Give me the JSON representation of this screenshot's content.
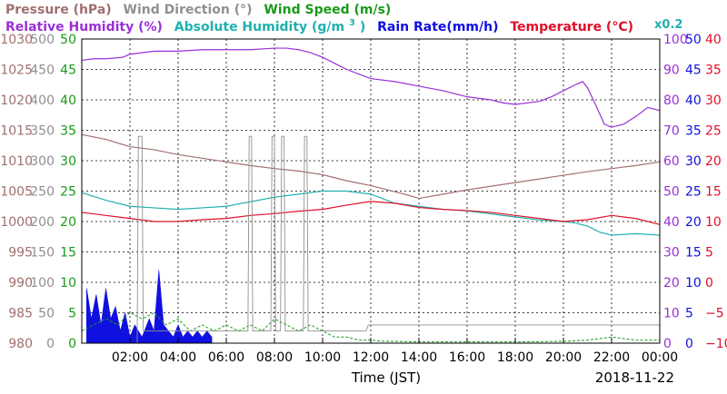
{
  "legend": {
    "pressure": {
      "text": "Pressure (hPa)",
      "color": "#a07070"
    },
    "wind_dir": {
      "text": "Wind Direction (°)",
      "color": "#909090"
    },
    "wind_speed": {
      "text": "Wind Speed (m/s)",
      "color": "#1a9a1a"
    },
    "humidity": {
      "text": "Relative Humidity (%)",
      "color": "#9a30d8"
    },
    "abs_hum_prefix": {
      "text": "Absolute Humidity (g/m",
      "color": "#20b0b0"
    },
    "abs_hum_sup": {
      "text": "3",
      "color": "#20b0b0"
    },
    "abs_hum_suffix": {
      "text": ")",
      "color": "#20b0b0"
    },
    "abs_hum_scale": {
      "text": "x0.2",
      "color": "#20b0b0"
    },
    "rain": {
      "text": "Rain Rate(mm/h)",
      "color": "#1010e0"
    },
    "temperature": {
      "text": "Temperature (°C)",
      "color": "#e0102a"
    }
  },
  "xlabel": "Time (JST)",
  "date": "2018-11-22",
  "chart_data": {
    "type": "line",
    "x_ticks": [
      "02:00",
      "04:00",
      "06:00",
      "08:00",
      "10:00",
      "12:00",
      "14:00",
      "16:00",
      "18:00",
      "20:00",
      "22:00",
      "00:00"
    ],
    "x_range_hours": [
      0,
      24
    ],
    "axes": {
      "pressure": {
        "range": [
          980,
          1030
        ],
        "ticks": [
          980,
          985,
          990,
          995,
          1000,
          1005,
          1010,
          1015,
          1020,
          1025,
          1030
        ],
        "color": "#a07070"
      },
      "wind_direction": {
        "range": [
          0,
          500
        ],
        "ticks": [
          0,
          50,
          100,
          150,
          200,
          250,
          300,
          350,
          400,
          450,
          500
        ],
        "color": "#909090"
      },
      "wind_speed": {
        "range": [
          0,
          50
        ],
        "ticks": [
          0,
          5,
          10,
          15,
          20,
          25,
          30,
          35,
          40,
          45,
          50
        ],
        "color": "#1a9a1a"
      },
      "humidity": {
        "range": [
          0,
          100
        ],
        "ticks": [
          0,
          10,
          20,
          30,
          40,
          50,
          60,
          70,
          80,
          90,
          100
        ],
        "color": "#9a30d8"
      },
      "rain_rate": {
        "range": [
          0,
          50
        ],
        "ticks": [
          0,
          5,
          10,
          15,
          20,
          25,
          30,
          35,
          40,
          45,
          50
        ],
        "color": "#1010e0"
      },
      "temperature": {
        "range": [
          -10,
          40
        ],
        "ticks": [
          -10,
          -5,
          0,
          5,
          10,
          15,
          20,
          25,
          30,
          35,
          40
        ],
        "tick_labels": [
          "−10",
          "−5",
          "0",
          "5",
          "10",
          "15",
          "20",
          "25",
          "30",
          "35",
          "40"
        ],
        "color": "#e0102a"
      }
    },
    "series": [
      {
        "key": "humidity",
        "color": "#9a30d8",
        "points": [
          [
            0,
            93
          ],
          [
            0.5,
            93.5
          ],
          [
            1,
            93.5
          ],
          [
            1.7,
            94
          ],
          [
            2,
            95
          ],
          [
            3,
            96
          ],
          [
            4,
            96
          ],
          [
            5,
            96.5
          ],
          [
            6,
            96.5
          ],
          [
            7,
            96.5
          ],
          [
            8,
            97
          ],
          [
            8.5,
            97
          ],
          [
            9,
            96.5
          ],
          [
            9.5,
            95.5
          ],
          [
            10,
            94
          ],
          [
            10.5,
            92
          ],
          [
            11,
            90
          ],
          [
            11.5,
            88.5
          ],
          [
            12,
            87
          ],
          [
            13,
            86
          ],
          [
            14,
            84.5
          ],
          [
            15,
            83
          ],
          [
            16,
            81
          ],
          [
            17,
            80
          ],
          [
            17.5,
            79
          ],
          [
            18,
            78.5
          ],
          [
            19,
            79.5
          ],
          [
            19.5,
            81
          ],
          [
            20,
            83
          ],
          [
            20.5,
            85
          ],
          [
            20.8,
            86
          ],
          [
            21,
            84
          ],
          [
            21.3,
            79
          ],
          [
            21.7,
            72
          ],
          [
            22,
            71
          ],
          [
            22.5,
            72
          ],
          [
            23,
            74.5
          ],
          [
            23.5,
            77.5
          ],
          [
            24,
            76.5
          ]
        ]
      },
      {
        "key": "pressure",
        "color": "#a07070",
        "points": [
          [
            0,
            1014.3
          ],
          [
            1,
            1013.5
          ],
          [
            2,
            1012.3
          ],
          [
            3,
            1011.8
          ],
          [
            4,
            1011
          ],
          [
            5,
            1010.4
          ],
          [
            6,
            1009.8
          ],
          [
            7,
            1009.2
          ],
          [
            8,
            1008.7
          ],
          [
            9,
            1008.3
          ],
          [
            10,
            1007.7
          ],
          [
            10.5,
            1007.2
          ],
          [
            11,
            1006.7
          ],
          [
            12,
            1005.9
          ],
          [
            13,
            1004.9
          ],
          [
            13.5,
            1004.4
          ],
          [
            14,
            1003.8
          ],
          [
            15,
            1004.5
          ],
          [
            16,
            1005.2
          ],
          [
            17,
            1005.8
          ],
          [
            18,
            1006.4
          ],
          [
            19,
            1007
          ],
          [
            20,
            1007.6
          ],
          [
            21,
            1008.2
          ],
          [
            22,
            1008.7
          ],
          [
            23,
            1009.2
          ],
          [
            24,
            1009.8
          ]
        ]
      },
      {
        "key": "abs_humidity",
        "color": "#20b0b0",
        "points": [
          [
            0,
            49.5
          ],
          [
            1,
            47
          ],
          [
            2,
            45
          ],
          [
            3,
            44.5
          ],
          [
            4,
            44
          ],
          [
            5,
            44.5
          ],
          [
            6,
            45
          ],
          [
            7,
            46.5
          ],
          [
            8,
            48
          ],
          [
            9,
            49
          ],
          [
            9.5,
            49.5
          ],
          [
            10,
            50
          ],
          [
            11,
            50
          ],
          [
            12,
            49
          ],
          [
            13,
            46
          ],
          [
            14,
            45
          ],
          [
            15,
            44
          ],
          [
            16,
            43.5
          ],
          [
            17,
            42.5
          ],
          [
            18,
            41.5
          ],
          [
            19,
            40.5
          ],
          [
            20,
            40
          ],
          [
            20.5,
            39.5
          ],
          [
            21,
            38.5
          ],
          [
            21.5,
            36.5
          ],
          [
            22,
            35.5
          ],
          [
            23,
            36
          ],
          [
            24,
            35.5
          ]
        ]
      },
      {
        "key": "temperature",
        "color": "#e0102a",
        "points": [
          [
            0,
            11.5
          ],
          [
            1,
            11
          ],
          [
            2,
            10.5
          ],
          [
            3,
            10
          ],
          [
            4,
            10
          ],
          [
            5,
            10.3
          ],
          [
            6,
            10.5
          ],
          [
            7,
            11
          ],
          [
            8,
            11.3
          ],
          [
            9,
            11.7
          ],
          [
            10,
            12
          ],
          [
            11,
            12.7
          ],
          [
            12,
            13.3
          ],
          [
            13,
            13
          ],
          [
            14,
            12.3
          ],
          [
            15,
            12
          ],
          [
            16,
            11.8
          ],
          [
            17,
            11.5
          ],
          [
            18,
            11
          ],
          [
            19,
            10.5
          ],
          [
            20,
            10
          ],
          [
            21,
            10.3
          ],
          [
            22,
            11
          ],
          [
            23,
            10.5
          ],
          [
            24,
            9.5
          ]
        ]
      },
      {
        "key": "wind_direction",
        "color": "#909090",
        "points": [
          [
            0,
            0
          ],
          [
            2.3,
            0
          ],
          [
            2.35,
            340
          ],
          [
            2.5,
            340
          ],
          [
            2.55,
            20
          ],
          [
            6.9,
            20
          ],
          [
            6.95,
            340
          ],
          [
            7.05,
            340
          ],
          [
            7.1,
            20
          ],
          [
            7.85,
            20
          ],
          [
            7.9,
            340
          ],
          [
            8.0,
            340
          ],
          [
            8.05,
            20
          ],
          [
            8.25,
            20
          ],
          [
            8.3,
            340
          ],
          [
            8.4,
            340
          ],
          [
            8.45,
            20
          ],
          [
            9.2,
            20
          ],
          [
            9.25,
            340
          ],
          [
            9.35,
            340
          ],
          [
            9.4,
            20
          ],
          [
            11.8,
            20
          ],
          [
            11.9,
            30
          ],
          [
            24,
            30
          ]
        ]
      }
    ],
    "rain_rate": {
      "color": "#1010e0",
      "points": [
        [
          0.2,
          9
        ],
        [
          0.4,
          4
        ],
        [
          0.6,
          8
        ],
        [
          0.8,
          3
        ],
        [
          1.0,
          9
        ],
        [
          1.2,
          4
        ],
        [
          1.4,
          6
        ],
        [
          1.6,
          2
        ],
        [
          1.8,
          5
        ],
        [
          2.0,
          1
        ],
        [
          2.2,
          3
        ],
        [
          2.5,
          1
        ],
        [
          2.8,
          4
        ],
        [
          3.0,
          2
        ],
        [
          3.2,
          12
        ],
        [
          3.4,
          3
        ],
        [
          3.6,
          2
        ],
        [
          3.8,
          1
        ],
        [
          4.0,
          3
        ],
        [
          4.2,
          1
        ],
        [
          4.4,
          2
        ],
        [
          4.6,
          1
        ],
        [
          4.8,
          2
        ],
        [
          5.0,
          1
        ],
        [
          5.2,
          2
        ],
        [
          5.4,
          1
        ]
      ]
    },
    "wind_speed": {
      "color": "#1a9a1a",
      "points": [
        [
          0,
          2
        ],
        [
          0.5,
          3
        ],
        [
          1,
          4
        ],
        [
          1.5,
          3
        ],
        [
          2,
          5
        ],
        [
          2.5,
          4
        ],
        [
          3,
          5
        ],
        [
          3.5,
          3
        ],
        [
          4,
          4
        ],
        [
          4.5,
          2
        ],
        [
          5,
          3
        ],
        [
          5.5,
          2
        ],
        [
          6,
          3
        ],
        [
          6.5,
          2
        ],
        [
          7,
          3
        ],
        [
          7.5,
          2
        ],
        [
          8,
          4
        ],
        [
          8.5,
          3
        ],
        [
          9,
          2
        ],
        [
          9.5,
          3
        ],
        [
          10,
          2
        ],
        [
          10.5,
          1
        ],
        [
          11,
          1
        ],
        [
          11.5,
          0.5
        ],
        [
          12,
          0.5
        ],
        [
          12.5,
          0.3
        ],
        [
          13,
          0.3
        ],
        [
          14,
          0.2
        ],
        [
          16,
          0.2
        ],
        [
          18,
          0.2
        ],
        [
          20,
          0.3
        ],
        [
          21,
          0.5
        ],
        [
          22,
          1
        ],
        [
          23,
          0.5
        ],
        [
          24,
          0.5
        ]
      ]
    }
  }
}
